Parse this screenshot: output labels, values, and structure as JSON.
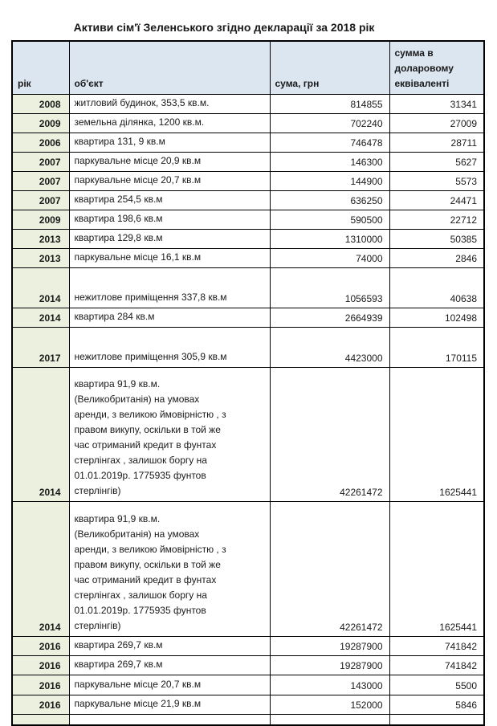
{
  "title": "Активи сім'ї Зеленського згідно декларації за 2018 рік",
  "colors": {
    "header_bg": "#DCE6F1",
    "year_col_bg": "#EBF1DE",
    "border": "#000000",
    "text": "#1A1A1A"
  },
  "chart_data": {
    "type": "table",
    "title": "Активи сім'ї Зеленського згідно декларації за 2018 рік",
    "columns": [
      "рік",
      "об'єкт",
      "сума, грн",
      "сумма в доларовому еквіваленті"
    ],
    "rows": [
      {
        "year": 2008,
        "object": "житловий будинок, 353,5 кв.м.",
        "uah": 814855,
        "usd": 31341
      },
      {
        "year": 2009,
        "object": "земельна ділянка, 1200 кв.м.",
        "uah": 702240,
        "usd": 27009
      },
      {
        "year": 2006,
        "object": "квартира 131, 9 кв.м",
        "uah": 746478,
        "usd": 28711
      },
      {
        "year": 2007,
        "object": "паркувальне місце 20,9 кв.м",
        "uah": 146300,
        "usd": 5627
      },
      {
        "year": 2007,
        "object": "паркувальне місце 20,7 кв.м",
        "uah": 144900,
        "usd": 5573
      },
      {
        "year": 2007,
        "object": "квартира 254,5 кв.м",
        "uah": 636250,
        "usd": 24471
      },
      {
        "year": 2009,
        "object": "квартира 198,6 кв.м",
        "uah": 590500,
        "usd": 22712
      },
      {
        "year": 2013,
        "object": "квартира 129,8 кв.м",
        "uah": 1310000,
        "usd": 50385
      },
      {
        "year": 2013,
        "object": "паркувальне місце 16,1 кв.м",
        "uah": 74000,
        "usd": 2846
      },
      {
        "year": 2014,
        "object": "нежитлове приміщення 337,8 кв.м",
        "uah": 1056593,
        "usd": 40638
      },
      {
        "year": 2014,
        "object": "квартира 284 кв.м",
        "uah": 2664939,
        "usd": 102498
      },
      {
        "year": 2017,
        "object": "нежитлове приміщення 305,9 кв.м",
        "uah": 4423000,
        "usd": 170115
      },
      {
        "year": 2014,
        "object": "квартира 91,9 кв.м.\n(Великобританія) на умовах\nаренди, з великою ймовірністю , з\nправом викупу, оскільки в той же\nчас отриманий кредит в фунтах\nстерлінгах , залишок боргу на\n01.01.2019р. 1775935 фунтов\nстерлінгів)",
        "uah": 42261472,
        "usd": 1625441
      },
      {
        "year": 2014,
        "object": "квартира 91,9 кв.м.\n(Великобританія) на умовах\nаренди, з великою ймовірністю , з\nправом викупу, оскільки в той же\nчас отриманий кредит в фунтах\nстерлінгах , залишок боргу на\n01.01.2019р. 1775935 фунтов\nстерлінгів)",
        "uah": 42261472,
        "usd": 1625441
      },
      {
        "year": 2016,
        "object": "квартира 269,7 кв.м",
        "uah": 19287900,
        "usd": 741842
      },
      {
        "year": 2016,
        "object": "квартира 269,7 кв.м",
        "uah": 19287900,
        "usd": 741842
      },
      {
        "year": 2016,
        "object": "паркувальне місце 20,7 кв.м",
        "uah": 143000,
        "usd": 5500
      },
      {
        "year": 2016,
        "object": "паркувальне місце 21,9 кв.м",
        "uah": 152000,
        "usd": 5846
      }
    ]
  }
}
